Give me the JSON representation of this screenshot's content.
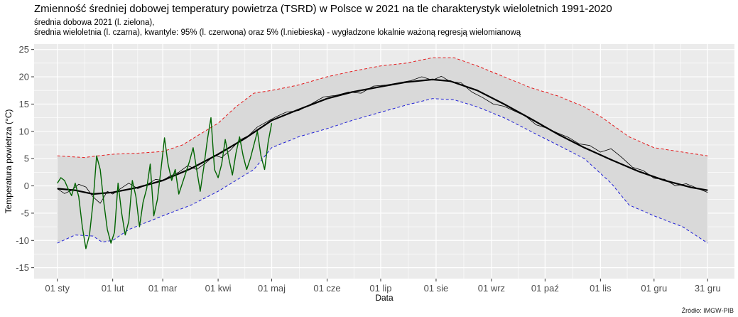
{
  "header": {
    "title": "Zmienność średniej dobowej temperatury powietrza (TSRD) w Polsce w 2021 na tle charakterystyk wieloletnich 1991-2020",
    "subtitle": "średnia dobowa 2021 (l. zielona),\nśrednia wieloletnia (l. czarna), kwantyle: 95% (l. czerwona) oraz 5% (l.niebieska) - wygładzone lokalnie ważoną regresją wielomianową"
  },
  "caption": "Źródło: IMGW-PIB",
  "colors": {
    "panel": "#ebebeb",
    "band": "#d9d9d9",
    "grid": "#ffffff",
    "mean": "#000000",
    "q95": "#e41a1c",
    "q5": "#1f1fd6",
    "year2021": "#006400"
  },
  "chart_data": {
    "type": "line",
    "xlabel": "Data",
    "ylabel": "Temperatura powietrza (°C)",
    "ylim": [
      -17,
      26
    ],
    "xlim_day": [
      -13,
      379
    ],
    "y_ticks": [
      -15,
      -10,
      -5,
      0,
      5,
      10,
      15,
      20,
      25
    ],
    "x_ticks": [
      {
        "label": "01 sty",
        "day": 0
      },
      {
        "label": "01 lut",
        "day": 31
      },
      {
        "label": "01 mar",
        "day": 59
      },
      {
        "label": "01 kwi",
        "day": 90
      },
      {
        "label": "01 maj",
        "day": 120
      },
      {
        "label": "01 cze",
        "day": 151
      },
      {
        "label": "01 lip",
        "day": 181
      },
      {
        "label": "01 sie",
        "day": 212
      },
      {
        "label": "01 wrz",
        "day": 243
      },
      {
        "label": "01 paź",
        "day": 273
      },
      {
        "label": "01 lis",
        "day": 304
      },
      {
        "label": "01 gru",
        "day": 334
      },
      {
        "label": "31 gru",
        "day": 364
      }
    ],
    "grid": true,
    "series": [
      {
        "name": "kwantyl 95%",
        "style": "dashed",
        "x": [
          0,
          15,
          25,
          31,
          45,
          59,
          70,
          80,
          90,
          100,
          110,
          120,
          135,
          151,
          165,
          181,
          195,
          210,
          222,
          235,
          250,
          265,
          280,
          295,
          305,
          320,
          334,
          350,
          364
        ],
        "y": [
          5.5,
          5.2,
          5.6,
          5.8,
          6.0,
          6.3,
          7.5,
          9.5,
          11.5,
          14.5,
          17.0,
          17.5,
          18.5,
          20.0,
          21.0,
          22.0,
          22.5,
          23.5,
          23.5,
          22.0,
          20.0,
          18.0,
          16.5,
          14.5,
          12.5,
          9.0,
          7.0,
          6.2,
          5.5
        ]
      },
      {
        "name": "kwantyl 5%",
        "style": "dashed",
        "x": [
          0,
          10,
          20,
          25,
          31,
          40,
          59,
          75,
          90,
          100,
          110,
          120,
          135,
          151,
          165,
          181,
          195,
          210,
          222,
          235,
          250,
          265,
          280,
          295,
          310,
          320,
          334,
          350,
          364
        ],
        "y": [
          -10.5,
          -9.0,
          -9.2,
          -10.3,
          -10.0,
          -8.0,
          -5.5,
          -3.5,
          -1.0,
          1.0,
          3.0,
          7.0,
          9.0,
          10.5,
          12.0,
          13.5,
          14.8,
          16.0,
          15.8,
          14.5,
          12.5,
          10.0,
          7.5,
          5.0,
          0.5,
          -3.5,
          -5.5,
          -7.5,
          -10.5
        ]
      },
      {
        "name": "średnia wieloletnia (wygładzona)",
        "style": "solid-thick",
        "x": [
          0,
          10,
          20,
          31,
          45,
          59,
          75,
          90,
          105,
          120,
          135,
          151,
          165,
          181,
          195,
          210,
          220,
          235,
          250,
          265,
          280,
          295,
          310,
          325,
          340,
          355,
          364
        ],
        "y": [
          -0.5,
          -0.8,
          -1.5,
          -1.2,
          -0.3,
          1.0,
          3.2,
          5.8,
          8.7,
          12.0,
          14.0,
          16.0,
          17.2,
          18.2,
          19.0,
          19.5,
          19.2,
          17.5,
          15.0,
          12.3,
          9.5,
          7.0,
          4.8,
          2.7,
          1.0,
          -0.3,
          -0.8
        ]
      },
      {
        "name": "średnia wieloletnia (dobowa)",
        "style": "solid-thin",
        "x": [
          0,
          4,
          8,
          12,
          16,
          20,
          24,
          28,
          31,
          35,
          40,
          45,
          50,
          55,
          59,
          63,
          68,
          73,
          78,
          83,
          88,
          92,
          97,
          102,
          107,
          112,
          117,
          122,
          128,
          135,
          142,
          149,
          156,
          163,
          170,
          177,
          184,
          191,
          198,
          204,
          210,
          215,
          220,
          226,
          232,
          238,
          244,
          250,
          256,
          262,
          268,
          274,
          280,
          286,
          292,
          298,
          304,
          310,
          316,
          322,
          328,
          334,
          340,
          346,
          352,
          358,
          364
        ],
        "y": [
          -0.5,
          -1.4,
          -0.8,
          0.3,
          -0.2,
          -2.0,
          -3.2,
          -1.0,
          -1.5,
          -0.6,
          0.5,
          -0.5,
          0.2,
          1.2,
          1.0,
          1.8,
          2.5,
          3.7,
          3.0,
          4.2,
          5.6,
          5.2,
          6.6,
          8.4,
          9.2,
          10.8,
          11.7,
          12.6,
          13.5,
          13.8,
          15.0,
          16.3,
          16.6,
          17.2,
          17.0,
          18.3,
          18.5,
          18.9,
          19.3,
          20.0,
          19.4,
          20.1,
          19.1,
          18.9,
          17.2,
          16.2,
          15.0,
          14.6,
          13.7,
          12.8,
          11.2,
          10.6,
          9.7,
          8.9,
          7.7,
          7.4,
          6.2,
          6.8,
          5.2,
          3.4,
          2.8,
          1.4,
          1.2,
          0.0,
          0.4,
          -0.4,
          -1.2
        ]
      },
      {
        "name": "średnia dobowa 2021",
        "style": "solid-green",
        "x": [
          0,
          2,
          4,
          6,
          8,
          10,
          12,
          14,
          16,
          18,
          20,
          22,
          24,
          26,
          28,
          30,
          32,
          34,
          36,
          38,
          40,
          42,
          44,
          46,
          48,
          50,
          52,
          54,
          56,
          58,
          60,
          62,
          64,
          66,
          68,
          70,
          72,
          74,
          76,
          78,
          80,
          82,
          84,
          86,
          88,
          90,
          92,
          94,
          96,
          98,
          100,
          102,
          104,
          106,
          108,
          110,
          112,
          114,
          116,
          118,
          120
        ],
        "y": [
          0.5,
          1.5,
          1.0,
          -0.5,
          -1.8,
          0.5,
          -2.0,
          -7.5,
          -11.5,
          -9.0,
          -3.0,
          5.5,
          3.0,
          -3.0,
          -8.0,
          -10.5,
          -8.5,
          0.5,
          -5.0,
          -9.0,
          -6.5,
          1.0,
          -2.0,
          -7.5,
          -3.0,
          -0.5,
          4.0,
          -5.5,
          -2.5,
          3.0,
          8.8,
          4.0,
          1.0,
          3.0,
          -1.5,
          0.5,
          2.5,
          4.5,
          7.0,
          3.0,
          -1.0,
          3.5,
          8.5,
          12.5,
          3.0,
          1.5,
          4.0,
          8.5,
          5.0,
          2.0,
          6.0,
          9.0,
          5.5,
          3.0,
          5.0,
          7.5,
          10.0,
          5.5,
          3.0,
          8.0,
          11.5
        ]
      }
    ]
  }
}
